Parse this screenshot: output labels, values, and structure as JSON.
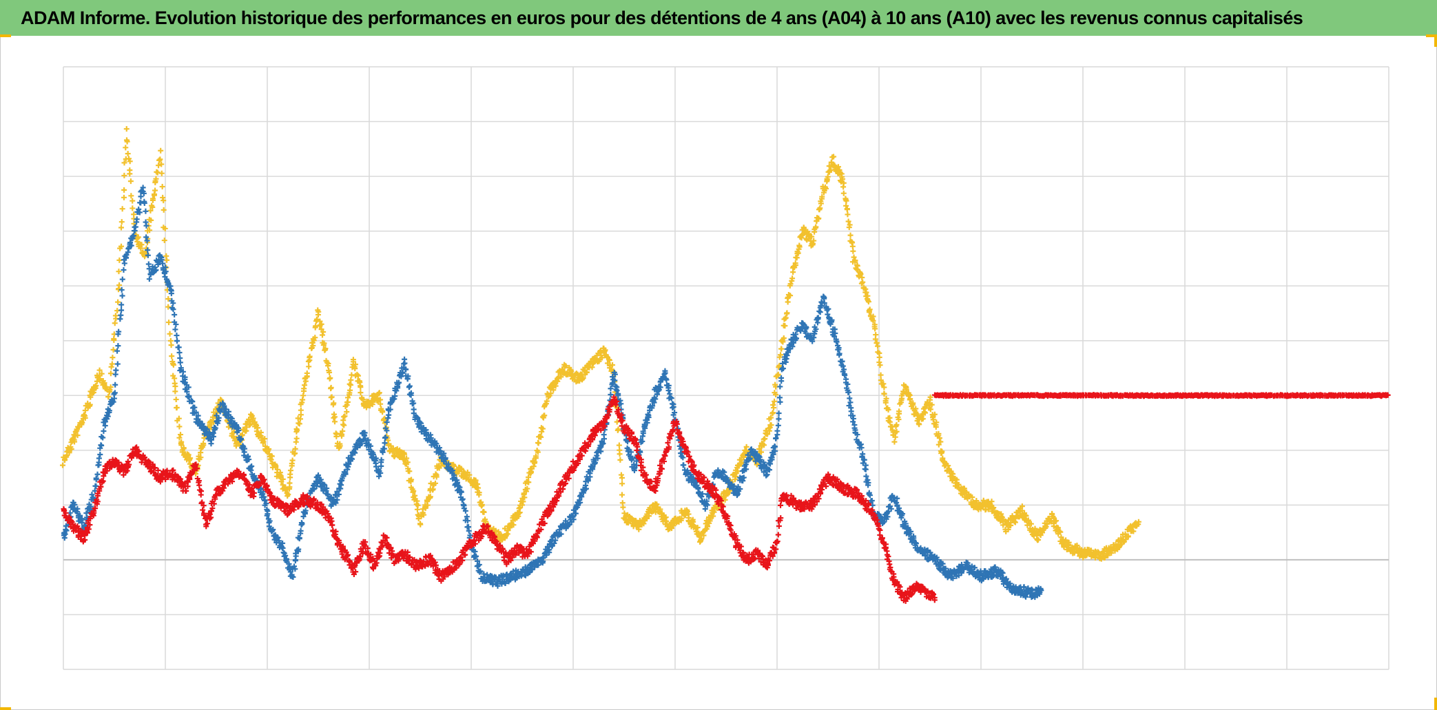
{
  "header": {
    "title": "ADAM Informe. Evolution historique des performances en euros pour des détentions de 4 ans (A04) à 10 ans (A10) avec les revenus connus capitalisés"
  },
  "colors": {
    "title_bar": "#80c87c",
    "corner_accent": "#f2b705",
    "grid": "#d9d9d9",
    "baseline": "#bfbfbf"
  },
  "chart_data": {
    "type": "scatter",
    "marker": "+",
    "grid": true,
    "x_divisions": 13,
    "ylim": [
      -2,
      9
    ],
    "series": [
      {
        "color": "#f2c12e",
        "points": [
          [
            0,
            1.8
          ],
          [
            0.2,
            2.6
          ],
          [
            0.35,
            3.4
          ],
          [
            0.45,
            3.0
          ],
          [
            0.55,
            5.2
          ],
          [
            0.62,
            7.8
          ],
          [
            0.7,
            6.0
          ],
          [
            0.8,
            5.5
          ],
          [
            0.88,
            6.6
          ],
          [
            0.95,
            7.4
          ],
          [
            1.05,
            4.0
          ],
          [
            1.15,
            2.1
          ],
          [
            1.3,
            1.6
          ],
          [
            1.4,
            2.3
          ],
          [
            1.55,
            2.9
          ],
          [
            1.7,
            2.1
          ],
          [
            1.85,
            2.6
          ],
          [
            2.0,
            2.0
          ],
          [
            2.2,
            1.2
          ],
          [
            2.35,
            3.0
          ],
          [
            2.5,
            4.5
          ],
          [
            2.6,
            3.5
          ],
          [
            2.7,
            2.0
          ],
          [
            2.85,
            3.6
          ],
          [
            2.95,
            2.8
          ],
          [
            3.1,
            3.0
          ],
          [
            3.2,
            2.0
          ],
          [
            3.35,
            1.9
          ],
          [
            3.5,
            0.7
          ],
          [
            3.7,
            1.8
          ],
          [
            3.9,
            1.6
          ],
          [
            4.05,
            1.4
          ],
          [
            4.15,
            0.6
          ],
          [
            4.3,
            0.4
          ],
          [
            4.45,
            0.8
          ],
          [
            4.55,
            1.4
          ],
          [
            4.65,
            2.0
          ],
          [
            4.75,
            3.0
          ],
          [
            4.9,
            3.5
          ],
          [
            5.05,
            3.3
          ],
          [
            5.2,
            3.6
          ],
          [
            5.3,
            3.8
          ],
          [
            5.4,
            3.4
          ],
          [
            5.5,
            0.8
          ],
          [
            5.65,
            0.6
          ],
          [
            5.8,
            1.0
          ],
          [
            5.95,
            0.6
          ],
          [
            6.1,
            0.9
          ],
          [
            6.25,
            0.4
          ],
          [
            6.35,
            0.8
          ],
          [
            6.5,
            1.2
          ],
          [
            6.6,
            1.6
          ],
          [
            6.7,
            2.0
          ],
          [
            6.8,
            1.8
          ],
          [
            6.95,
            2.6
          ],
          [
            7.05,
            4.0
          ],
          [
            7.15,
            5.2
          ],
          [
            7.25,
            6.0
          ],
          [
            7.35,
            5.8
          ],
          [
            7.45,
            6.7
          ],
          [
            7.55,
            7.3
          ],
          [
            7.65,
            6.9
          ],
          [
            7.75,
            5.5
          ],
          [
            7.85,
            5.0
          ],
          [
            7.95,
            4.3
          ],
          [
            8.05,
            3.0
          ],
          [
            8.15,
            2.2
          ],
          [
            8.25,
            3.2
          ],
          [
            8.4,
            2.5
          ],
          [
            8.5,
            2.9
          ],
          [
            8.65,
            1.7
          ],
          [
            8.8,
            1.3
          ],
          [
            8.95,
            1.0
          ],
          [
            9.1,
            1.0
          ],
          [
            9.25,
            0.6
          ],
          [
            9.4,
            0.9
          ],
          [
            9.55,
            0.4
          ],
          [
            9.7,
            0.8
          ],
          [
            9.8,
            0.3
          ],
          [
            9.9,
            0.2
          ],
          [
            10.05,
            0.1
          ],
          [
            10.2,
            0.1
          ],
          [
            10.35,
            0.3
          ],
          [
            10.45,
            0.5
          ],
          [
            10.55,
            0.7
          ]
        ]
      },
      {
        "color": "#2f75b5",
        "points": [
          [
            0,
            0.4
          ],
          [
            0.1,
            1.0
          ],
          [
            0.2,
            0.6
          ],
          [
            0.3,
            1.2
          ],
          [
            0.4,
            2.5
          ],
          [
            0.5,
            3.0
          ],
          [
            0.6,
            5.5
          ],
          [
            0.7,
            6.0
          ],
          [
            0.78,
            6.8
          ],
          [
            0.85,
            5.2
          ],
          [
            0.95,
            5.5
          ],
          [
            1.05,
            5.0
          ],
          [
            1.15,
            3.5
          ],
          [
            1.3,
            2.6
          ],
          [
            1.45,
            2.2
          ],
          [
            1.55,
            2.8
          ],
          [
            1.7,
            2.4
          ],
          [
            1.85,
            1.6
          ],
          [
            1.95,
            1.2
          ],
          [
            2.05,
            0.5
          ],
          [
            2.15,
            0.2
          ],
          [
            2.25,
            -0.3
          ],
          [
            2.35,
            0.8
          ],
          [
            2.5,
            1.5
          ],
          [
            2.65,
            1.0
          ],
          [
            2.8,
            1.8
          ],
          [
            2.95,
            2.3
          ],
          [
            3.1,
            1.6
          ],
          [
            3.2,
            2.8
          ],
          [
            3.35,
            3.6
          ],
          [
            3.45,
            2.6
          ],
          [
            3.6,
            2.2
          ],
          [
            3.75,
            1.8
          ],
          [
            3.9,
            1.2
          ],
          [
            4.0,
            0.3
          ],
          [
            4.1,
            -0.3
          ],
          [
            4.25,
            -0.4
          ],
          [
            4.4,
            -0.3
          ],
          [
            4.55,
            -0.2
          ],
          [
            4.7,
            0.0
          ],
          [
            4.85,
            0.5
          ],
          [
            5.0,
            0.8
          ],
          [
            5.15,
            1.5
          ],
          [
            5.3,
            2.2
          ],
          [
            5.4,
            3.4
          ],
          [
            5.5,
            2.4
          ],
          [
            5.6,
            1.6
          ],
          [
            5.7,
            2.4
          ],
          [
            5.8,
            3.0
          ],
          [
            5.9,
            3.4
          ],
          [
            6.0,
            2.6
          ],
          [
            6.1,
            1.6
          ],
          [
            6.2,
            1.4
          ],
          [
            6.3,
            1.0
          ],
          [
            6.4,
            1.6
          ],
          [
            6.5,
            1.5
          ],
          [
            6.6,
            1.2
          ],
          [
            6.75,
            2.0
          ],
          [
            6.9,
            1.6
          ],
          [
            7.0,
            2.2
          ],
          [
            7.05,
            3.5
          ],
          [
            7.15,
            4.0
          ],
          [
            7.25,
            4.3
          ],
          [
            7.35,
            4.0
          ],
          [
            7.45,
            4.8
          ],
          [
            7.55,
            4.2
          ],
          [
            7.65,
            3.5
          ],
          [
            7.75,
            2.5
          ],
          [
            7.85,
            1.8
          ],
          [
            7.95,
            0.8
          ],
          [
            8.05,
            0.7
          ],
          [
            8.15,
            1.2
          ],
          [
            8.25,
            0.6
          ],
          [
            8.4,
            0.2
          ],
          [
            8.55,
            0.0
          ],
          [
            8.7,
            -0.3
          ],
          [
            8.85,
            -0.1
          ],
          [
            9.0,
            -0.3
          ],
          [
            9.15,
            -0.2
          ],
          [
            9.3,
            -0.5
          ],
          [
            9.45,
            -0.6
          ],
          [
            9.6,
            -0.6
          ]
        ]
      },
      {
        "color": "#e8141a",
        "points": [
          [
            0,
            0.9
          ],
          [
            0.1,
            0.6
          ],
          [
            0.2,
            0.4
          ],
          [
            0.3,
            0.9
          ],
          [
            0.4,
            1.6
          ],
          [
            0.5,
            1.8
          ],
          [
            0.6,
            1.6
          ],
          [
            0.7,
            2.0
          ],
          [
            0.8,
            1.8
          ],
          [
            0.95,
            1.5
          ],
          [
            1.05,
            1.6
          ],
          [
            1.2,
            1.3
          ],
          [
            1.3,
            1.8
          ],
          [
            1.4,
            0.6
          ],
          [
            1.5,
            1.2
          ],
          [
            1.65,
            1.5
          ],
          [
            1.75,
            1.6
          ],
          [
            1.85,
            1.2
          ],
          [
            1.95,
            1.5
          ],
          [
            2.05,
            1.1
          ],
          [
            2.2,
            0.9
          ],
          [
            2.35,
            1.1
          ],
          [
            2.5,
            1.0
          ],
          [
            2.6,
            0.8
          ],
          [
            2.7,
            0.3
          ],
          [
            2.85,
            -0.2
          ],
          [
            2.95,
            0.3
          ],
          [
            3.05,
            -0.1
          ],
          [
            3.15,
            0.4
          ],
          [
            3.25,
            0.0
          ],
          [
            3.35,
            0.1
          ],
          [
            3.45,
            -0.1
          ],
          [
            3.6,
            0.0
          ],
          [
            3.7,
            -0.3
          ],
          [
            3.85,
            -0.1
          ],
          [
            3.95,
            0.2
          ],
          [
            4.05,
            0.4
          ],
          [
            4.15,
            0.6
          ],
          [
            4.25,
            0.3
          ],
          [
            4.35,
            0.0
          ],
          [
            4.45,
            0.2
          ],
          [
            4.55,
            0.1
          ],
          [
            4.7,
            0.7
          ],
          [
            4.8,
            1.0
          ],
          [
            4.9,
            1.4
          ],
          [
            5.0,
            1.7
          ],
          [
            5.1,
            2.0
          ],
          [
            5.2,
            2.3
          ],
          [
            5.3,
            2.5
          ],
          [
            5.4,
            3.0
          ],
          [
            5.5,
            2.4
          ],
          [
            5.6,
            2.2
          ],
          [
            5.7,
            1.5
          ],
          [
            5.8,
            1.3
          ],
          [
            5.9,
            1.9
          ],
          [
            6.0,
            2.5
          ],
          [
            6.1,
            2.0
          ],
          [
            6.2,
            1.6
          ],
          [
            6.3,
            1.4
          ],
          [
            6.4,
            1.2
          ],
          [
            6.5,
            0.8
          ],
          [
            6.6,
            0.3
          ],
          [
            6.7,
            0.0
          ],
          [
            6.8,
            0.1
          ],
          [
            6.9,
            -0.1
          ],
          [
            7.0,
            0.3
          ],
          [
            7.05,
            1.2
          ],
          [
            7.2,
            1.0
          ],
          [
            7.35,
            1.0
          ],
          [
            7.5,
            1.5
          ],
          [
            7.65,
            1.3
          ],
          [
            7.8,
            1.2
          ],
          [
            7.95,
            0.8
          ],
          [
            8.05,
            0.3
          ],
          [
            8.15,
            -0.4
          ],
          [
            8.25,
            -0.7
          ],
          [
            8.35,
            -0.5
          ],
          [
            8.45,
            -0.6
          ],
          [
            8.55,
            -0.7
          ]
        ]
      },
      {
        "color": "#e8141a",
        "points": [
          [
            8.55,
            3.0
          ],
          [
            13.0,
            3.0
          ]
        ]
      }
    ]
  }
}
